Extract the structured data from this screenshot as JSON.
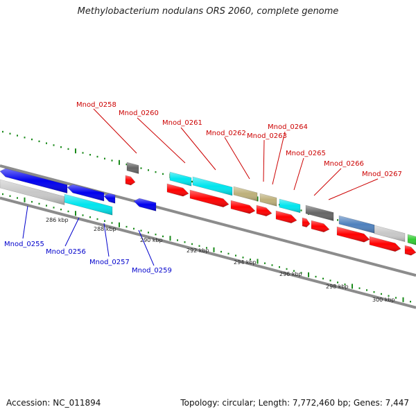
{
  "title": "Methylobacterium nodulans ORS 2060, complete genome",
  "footer": {
    "accession": "Accession: NC_011894",
    "stats": "Topology: circular; Length: 7,772,460 bp; Genes: 7,447"
  },
  "ticks": [
    "286 kbp",
    "288 kbp",
    "290 kbp",
    "292 kbp",
    "294 kbp",
    "296 kbp",
    "298 kbp",
    "300 kbp"
  ],
  "labels_top": [
    "Mnod_0258",
    "Mnod_0260",
    "Mnod_0261",
    "Mnod_0262",
    "Mnod_0263",
    "Mnod_0264",
    "Mnod_0265",
    "Mnod_0266",
    "Mnod_0267"
  ],
  "labels_bottom": [
    "Mnod_0255",
    "Mnod_0256",
    "Mnod_0257",
    "Mnod_0259"
  ],
  "colors": {
    "label_top": "#cc0000",
    "label_bottom": "#0000cc",
    "tick": "#1a8a1a",
    "backbone": "#8c8c8c",
    "cds": "#ff0000",
    "blue": "#0000ee",
    "cyan": "#00e5ee",
    "khaki": "#bdb07a",
    "gray_dark": "#666666",
    "gray_light": "#c8c8c8",
    "steel": "#4f81bd",
    "green": "#33cc33"
  }
}
